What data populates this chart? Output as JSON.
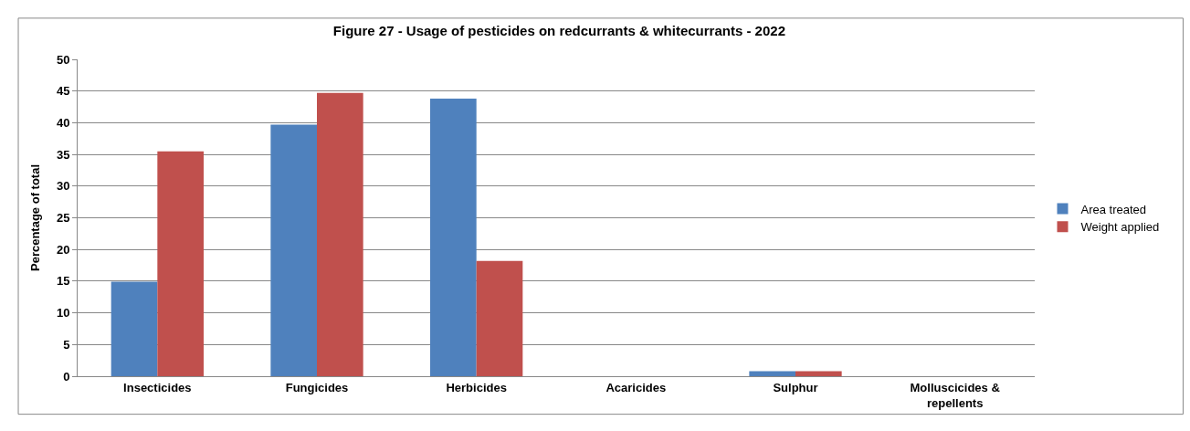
{
  "chart_data": {
    "type": "bar",
    "title": "Figure 27 - Usage of pesticides on redcurrants & whitecurrants - 2022",
    "ylabel": "Percentage of total",
    "categories": [
      "Insecticides",
      "Fungicides",
      "Herbicides",
      "Acaricides",
      "Sulphur",
      "Molluscicides & repellents"
    ],
    "series": [
      {
        "name": "Area treated",
        "color": "#4f81bd",
        "values": [
          14.9,
          39.7,
          43.8,
          0,
          0.8,
          0
        ]
      },
      {
        "name": "Weight applied",
        "color": "#c0504d",
        "values": [
          35.5,
          44.7,
          18.2,
          0,
          0.8,
          0
        ]
      }
    ],
    "ylim": [
      0,
      50
    ],
    "yticks": [
      0,
      5,
      10,
      15,
      20,
      25,
      30,
      35,
      40,
      45,
      50
    ],
    "grid": "y",
    "legend": "right"
  }
}
